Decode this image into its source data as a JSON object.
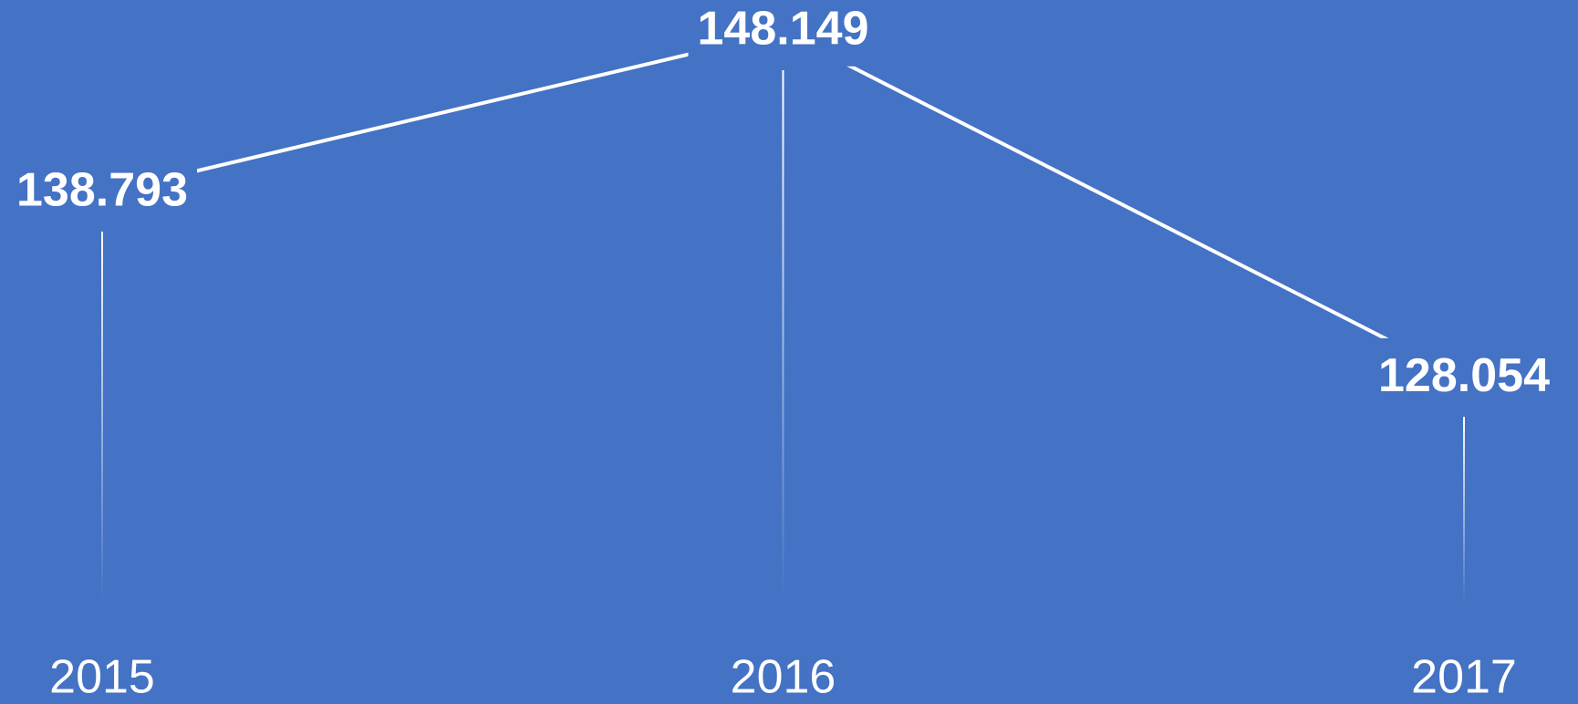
{
  "chart_data": {
    "type": "line",
    "categories": [
      "2015",
      "2016",
      "2017"
    ],
    "values": [
      138.793,
      148.149,
      128.054
    ],
    "color": "#ffffff",
    "background": "#4472c4",
    "ylim": [
      115,
      150
    ],
    "grid": false
  }
}
